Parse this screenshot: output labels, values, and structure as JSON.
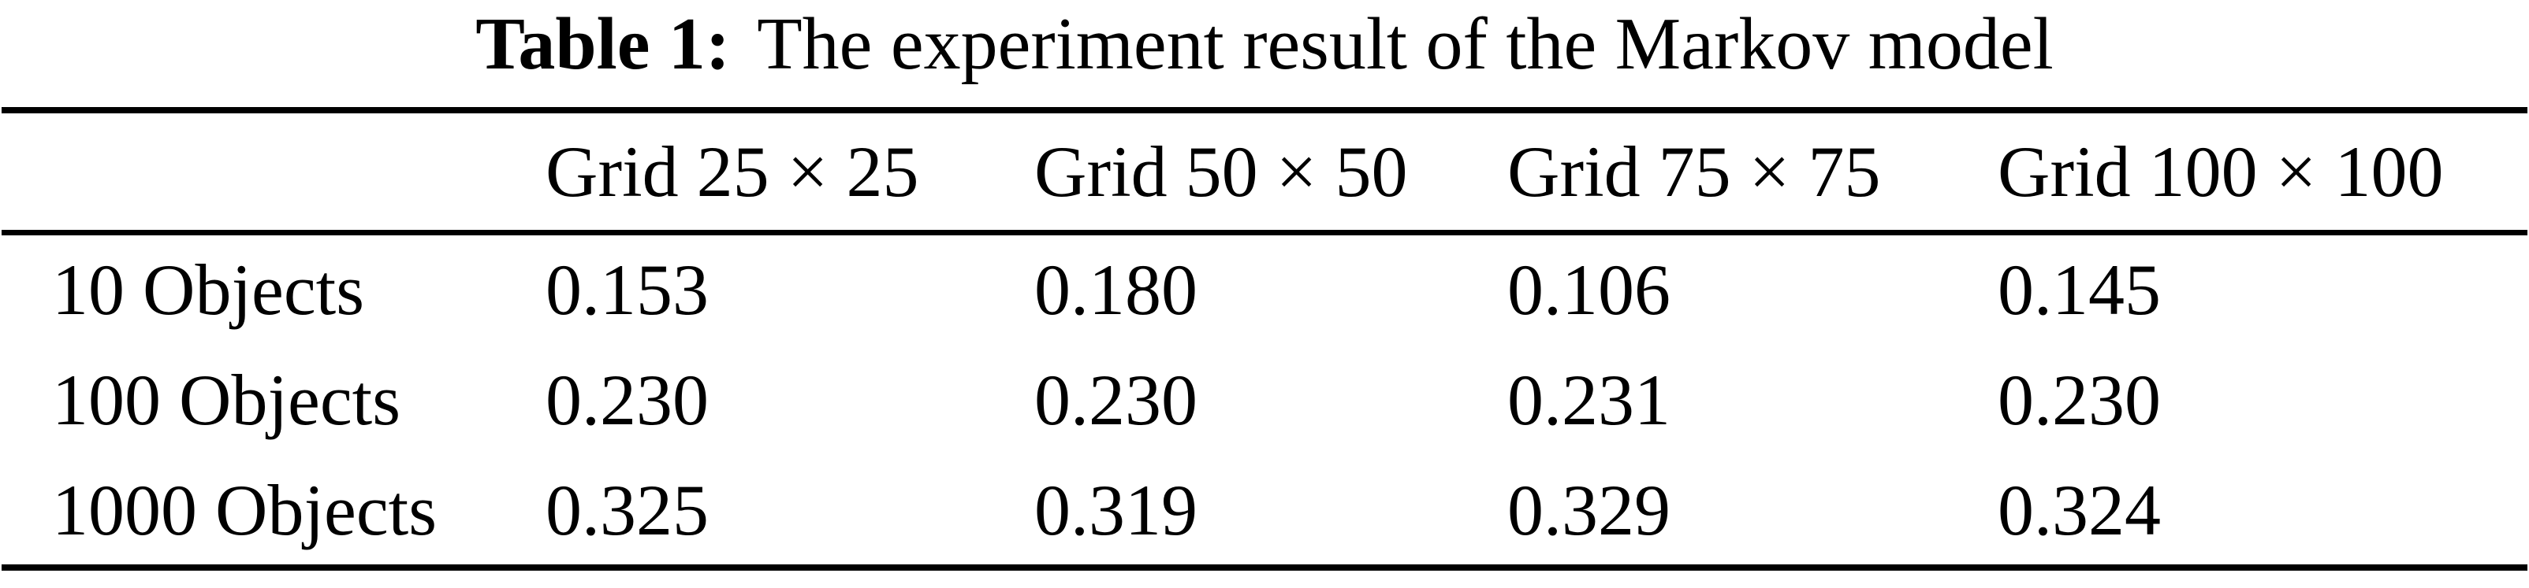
{
  "title": {
    "label": "Table 1:",
    "caption": "The experiment result of the Markov model"
  },
  "table": {
    "columns": [
      "",
      "Grid 25 × 25",
      "Grid 50 × 50",
      "Grid 75 × 75",
      "Grid 100 × 100"
    ],
    "rows": [
      {
        "label": "10 Objects",
        "values": [
          "0.153",
          "0.180",
          "0.106",
          "0.145"
        ]
      },
      {
        "label": "100 Objects",
        "values": [
          "0.230",
          "0.230",
          "0.231",
          "0.230"
        ]
      },
      {
        "label": "1000 Objects",
        "values": [
          "0.325",
          "0.319",
          "0.329",
          "0.324"
        ]
      }
    ]
  },
  "colors": {
    "text": "#000000",
    "background": "#ffffff",
    "rule": "#000000"
  },
  "chart_data": {
    "type": "table",
    "title": "Table 1: The experiment result of the Markov model",
    "categories": [
      "Grid 25 × 25",
      "Grid 50 × 50",
      "Grid 75 × 75",
      "Grid 100 × 100"
    ],
    "series": [
      {
        "name": "10 Objects",
        "values": [
          0.153,
          0.18,
          0.106,
          0.145
        ]
      },
      {
        "name": "100 Objects",
        "values": [
          0.23,
          0.23,
          0.231,
          0.23
        ]
      },
      {
        "name": "1000 Objects",
        "values": [
          0.325,
          0.319,
          0.329,
          0.324
        ]
      }
    ]
  }
}
